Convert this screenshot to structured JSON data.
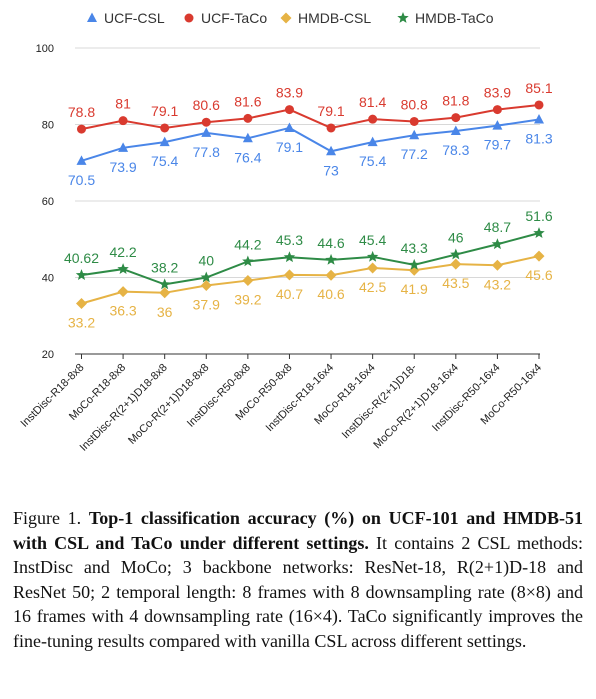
{
  "chart_data": {
    "type": "line",
    "categories": [
      "InstDisc-R18-8x8",
      "MoCo-R18-8x8",
      "InstDisc-R(2+1)D18-8x8",
      "MoCo-R(2+1)D18-8x8",
      "InstDisc-R50-8x8",
      "MoCo-R50-8x8",
      "InstDisc-R18-16x4",
      "MoCo-R18-16x4",
      "InstDisc-R(2+1)D18-",
      "MoCo-R(2+1)D18-16x4",
      "InstDisc-R50-16x4",
      "MoCo-R50-16x4"
    ],
    "series": [
      {
        "name": "UCF-CSL",
        "color": "#4a86e8",
        "marker": "triangle",
        "values": [
          70.5,
          73.9,
          75.4,
          77.8,
          76.4,
          79.1,
          73,
          75.4,
          77.2,
          78.3,
          79.7,
          81.3
        ],
        "labels": [
          "70.5",
          "73.9",
          "75.4",
          "77.8",
          "76.4",
          "79.1",
          "73",
          "75.4",
          "77.2",
          "78.3",
          "79.7",
          "81.3"
        ],
        "label_pos": "below"
      },
      {
        "name": "UCF-TaCo",
        "color": "#d93a2f",
        "marker": "circle",
        "values": [
          78.8,
          81,
          79.1,
          80.6,
          81.6,
          83.9,
          79.1,
          81.4,
          80.8,
          81.8,
          83.9,
          85.1
        ],
        "labels": [
          "78.8",
          "81",
          "79.1",
          "80.6",
          "81.6",
          "83.9",
          "79.1",
          "81.4",
          "80.8",
          "81.8",
          "83.9",
          "85.1"
        ],
        "label_pos": "above"
      },
      {
        "name": "HMDB-CSL",
        "color": "#e6b345",
        "marker": "diamond",
        "values": [
          33.2,
          36.3,
          36,
          37.9,
          39.2,
          40.7,
          40.6,
          42.5,
          41.9,
          43.5,
          43.2,
          45.6
        ],
        "labels": [
          "33.2",
          "36.3",
          "36",
          "37.9",
          "39.2",
          "40.7",
          "40.6",
          "42.5",
          "41.9",
          "43.5",
          "43.2",
          "45.6"
        ],
        "label_pos": "below"
      },
      {
        "name": "HMDB-TaCo",
        "color": "#2e8b46",
        "marker": "star",
        "values": [
          40.62,
          42.2,
          38.2,
          40,
          44.2,
          45.3,
          44.6,
          45.4,
          43.3,
          46,
          48.7,
          51.6
        ],
        "labels": [
          "40.62",
          "42.2",
          "38.2",
          "40",
          "44.2",
          "45.3",
          "44.6",
          "45.4",
          "43.3",
          "46",
          "48.7",
          "51.6"
        ],
        "label_pos": "above"
      }
    ],
    "yticks": [
      "20",
      "40",
      "60",
      "80",
      "100"
    ],
    "ylim": [
      20,
      100
    ],
    "grid": "horizontal",
    "legend_position": "top"
  },
  "caption": {
    "prefix": "Figure 1. ",
    "bold": "Top-1 classification accuracy (%) on UCF-101 and HMDB-51 with CSL and TaCo under different settings.",
    "rest": " It contains 2 CSL methods: InstDisc and MoCo; 3 backbone networks: ResNet-18, R(2+1)D-18 and ResNet 50; 2 temporal length: 8 frames with 8 downsampling rate (8×8) and 16 frames with 4 downsampling rate (16×4). TaCo significantly improves the fine-tuning results compared with vanilla CSL across different settings."
  }
}
